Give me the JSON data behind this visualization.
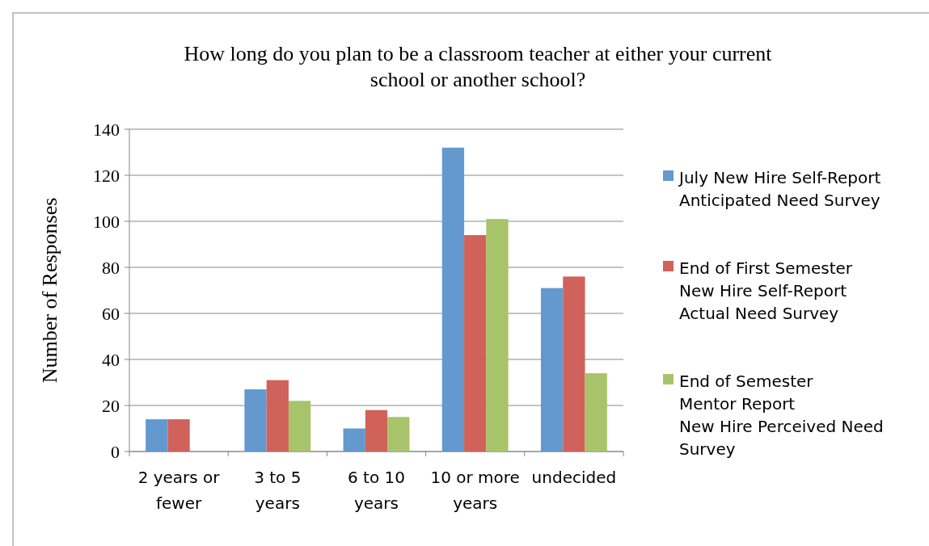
{
  "chart_data": {
    "type": "bar",
    "title": "How long do you plan to be a classroom teacher at either your current\nschool or another school?",
    "ylabel": "Number of Responses",
    "categories": [
      "2 years or fewer",
      "3 to 5 years",
      "6 to 10 years",
      "10 or more years",
      "undecided"
    ],
    "series": [
      {
        "name": "July New Hire Self-Report\nAnticipated Need Survey",
        "color": "#6399cf",
        "values": [
          14,
          27,
          10,
          132,
          71
        ]
      },
      {
        "name": "End of First Semester\nNew Hire Self-Report\nActual Need Survey",
        "color": "#d0625b",
        "values": [
          14,
          31,
          18,
          94,
          76
        ]
      },
      {
        "name": "End of Semester\nMentor Report\nNew Hire Perceived Need\nSurvey",
        "color": "#a8c46a",
        "values": [
          0,
          22,
          15,
          101,
          34
        ]
      }
    ],
    "ylim": [
      0,
      140
    ],
    "yticks": [
      0,
      20,
      40,
      60,
      80,
      100,
      120,
      140
    ],
    "grid": "y",
    "legend": "right"
  }
}
